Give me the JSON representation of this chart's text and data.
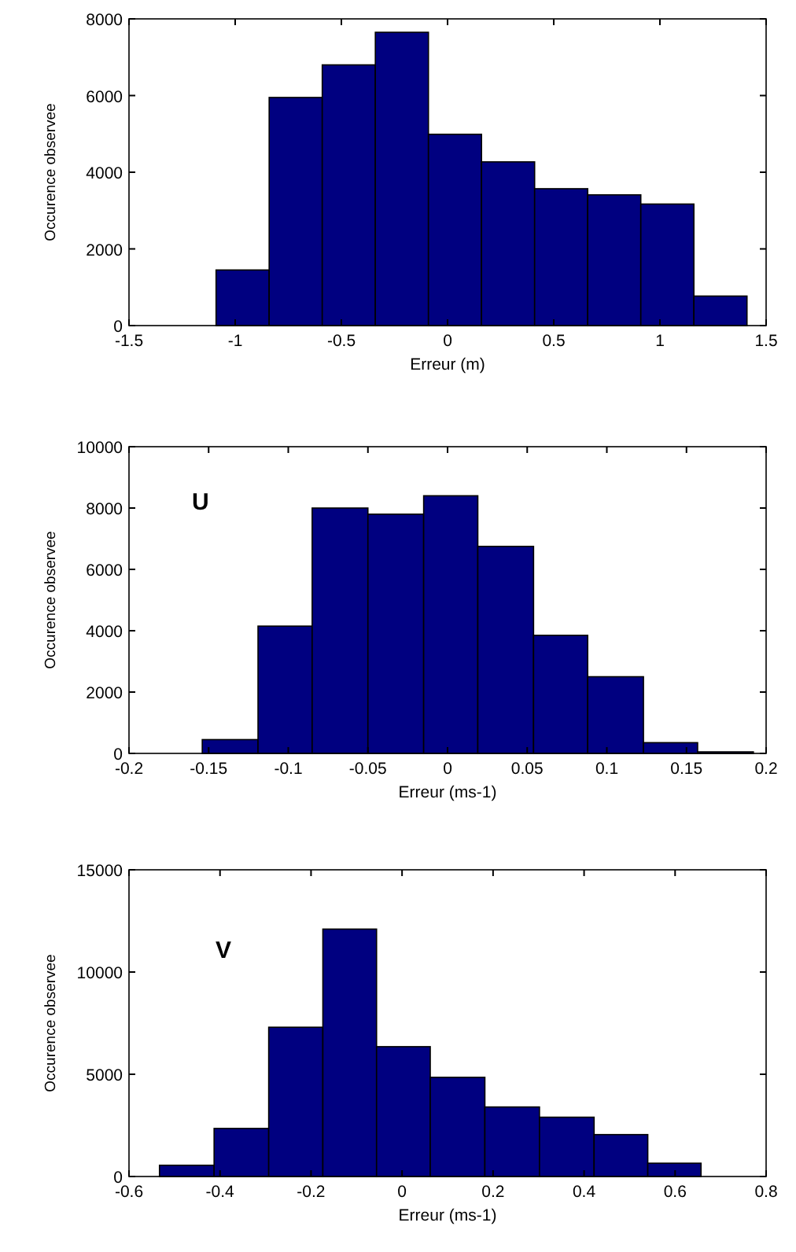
{
  "chart_data": [
    {
      "type": "histogram",
      "xlabel": "Erreur (m)",
      "ylabel": "Occurence observee",
      "bins": [
        -1.09,
        -0.84,
        -0.59,
        -0.34,
        -0.09,
        0.16,
        0.41,
        0.66,
        0.91,
        1.16,
        1.41
      ],
      "values": [
        1450,
        5950,
        6800,
        7650,
        4990,
        4270,
        3570,
        3410,
        3170,
        770
      ],
      "color": "#000080",
      "xlim": [
        -1.5,
        1.5
      ],
      "xticks": [
        -1.5,
        -1,
        -0.5,
        0,
        0.5,
        1,
        1.5
      ],
      "ylim": [
        0,
        8000
      ],
      "yticks": [
        0,
        2000,
        4000,
        6000,
        8000
      ],
      "grid": false
    },
    {
      "type": "histogram",
      "xlabel": "Erreur (ms-1)",
      "ylabel": "Occurence observee",
      "annotations": [
        "U"
      ],
      "bins": [
        -0.154,
        -0.119,
        -0.085,
        -0.05,
        -0.015,
        0.019,
        0.054,
        0.088,
        0.123,
        0.157,
        0.192
      ],
      "values": [
        450,
        4150,
        8000,
        7800,
        8400,
        6750,
        3850,
        2500,
        350,
        50
      ],
      "color": "#000080",
      "xlim": [
        -0.2,
        0.2
      ],
      "xticks": [
        -0.2,
        -0.15,
        -0.1,
        -0.05,
        0,
        0.05,
        0.1,
        0.15,
        0.2
      ],
      "ylim": [
        0,
        10000
      ],
      "yticks": [
        0,
        2000,
        4000,
        6000,
        8000,
        10000
      ],
      "grid": false
    },
    {
      "type": "histogram",
      "xlabel": "Erreur (ms-1)",
      "ylabel": "Occurence observee",
      "annotations": [
        "V"
      ],
      "bins": [
        -0.533,
        -0.413,
        -0.293,
        -0.174,
        -0.056,
        0.062,
        0.182,
        0.302,
        0.422,
        0.54,
        0.657
      ],
      "values": [
        550,
        2350,
        7300,
        12100,
        6350,
        4850,
        3400,
        2900,
        2050,
        650
      ],
      "color": "#000080",
      "xlim": [
        -0.6,
        0.8
      ],
      "xticks": [
        -0.6,
        -0.4,
        -0.2,
        0,
        0.2,
        0.4,
        0.6,
        0.8
      ],
      "ylim": [
        0,
        15000
      ],
      "yticks": [
        0,
        5000,
        10000,
        15000
      ],
      "grid": false
    }
  ]
}
